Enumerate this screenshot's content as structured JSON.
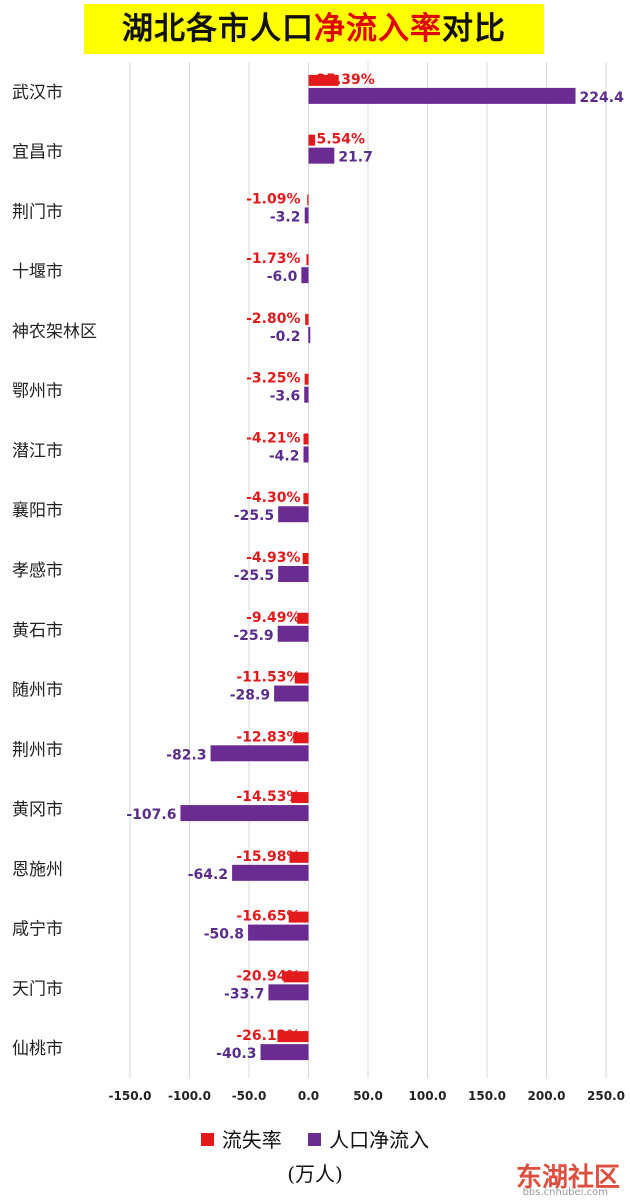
{
  "header": {
    "title_part1": "湖北各市人口",
    "title_highlight": "净流入率",
    "title_part3": "对比"
  },
  "colors": {
    "rate": "#e31a1c",
    "net_inflow": "#6a2c91",
    "title_bg": "#ffff00"
  },
  "chart_data": {
    "type": "bar",
    "orientation": "horizontal",
    "title": "湖北各市人口净流入率对比",
    "categories": [
      "武汉市",
      "宜昌市",
      "荆门市",
      "十堰市",
      "神农架林区",
      "鄂州市",
      "潜江市",
      "襄阳市",
      "孝感市",
      "黄石市",
      "随州市",
      "荆州市",
      "黄冈市",
      "恩施州",
      "咸宁市",
      "天门市",
      "仙桃市"
    ],
    "series": [
      {
        "name": "流失率",
        "unit": "%",
        "labels": [
          "25.39%",
          "5.54%",
          "-1.09%",
          "-1.73%",
          "-2.80%",
          "-3.25%",
          "-4.21%",
          "-4.30%",
          "-4.93%",
          "-9.49%",
          "-11.53%",
          "-12.83%",
          "-14.53%",
          "-15.98%",
          "-16.65%",
          "-20.94%",
          "-26.12%"
        ],
        "values": [
          25.39,
          5.54,
          -1.09,
          -1.73,
          -2.8,
          -3.25,
          -4.21,
          -4.3,
          -4.93,
          -9.49,
          -11.53,
          -12.83,
          -14.53,
          -15.98,
          -16.65,
          -20.94,
          -26.12
        ]
      },
      {
        "name": "人口净流入",
        "labels": [
          "224.4",
          "21.7",
          "-3.2",
          "-6.0",
          "-0.2",
          "-3.6",
          "-4.2",
          "-25.5",
          "-25.5",
          "-25.9",
          "-28.9",
          "-82.3",
          "-107.6",
          "-64.2",
          "-50.8",
          "-33.7",
          "-40.3"
        ],
        "values": [
          224.4,
          21.7,
          -3.2,
          -6.0,
          -0.2,
          -3.6,
          -4.2,
          -25.5,
          -25.5,
          -25.9,
          -28.9,
          -82.3,
          -107.6,
          -64.2,
          -50.8,
          -33.7,
          -40.3
        ]
      }
    ],
    "xlim": [
      -150,
      250
    ],
    "xticks": [
      "-150.0",
      "-100.0",
      "-50.0",
      "0.0",
      "50.0",
      "100.0",
      "150.0",
      "200.0",
      "250.0"
    ],
    "grid": true,
    "legend_position": "bottom",
    "unit_label": "(万人)"
  },
  "watermark": {
    "brand": "东湖社区",
    "site": "bbs.cnhubei.com"
  }
}
